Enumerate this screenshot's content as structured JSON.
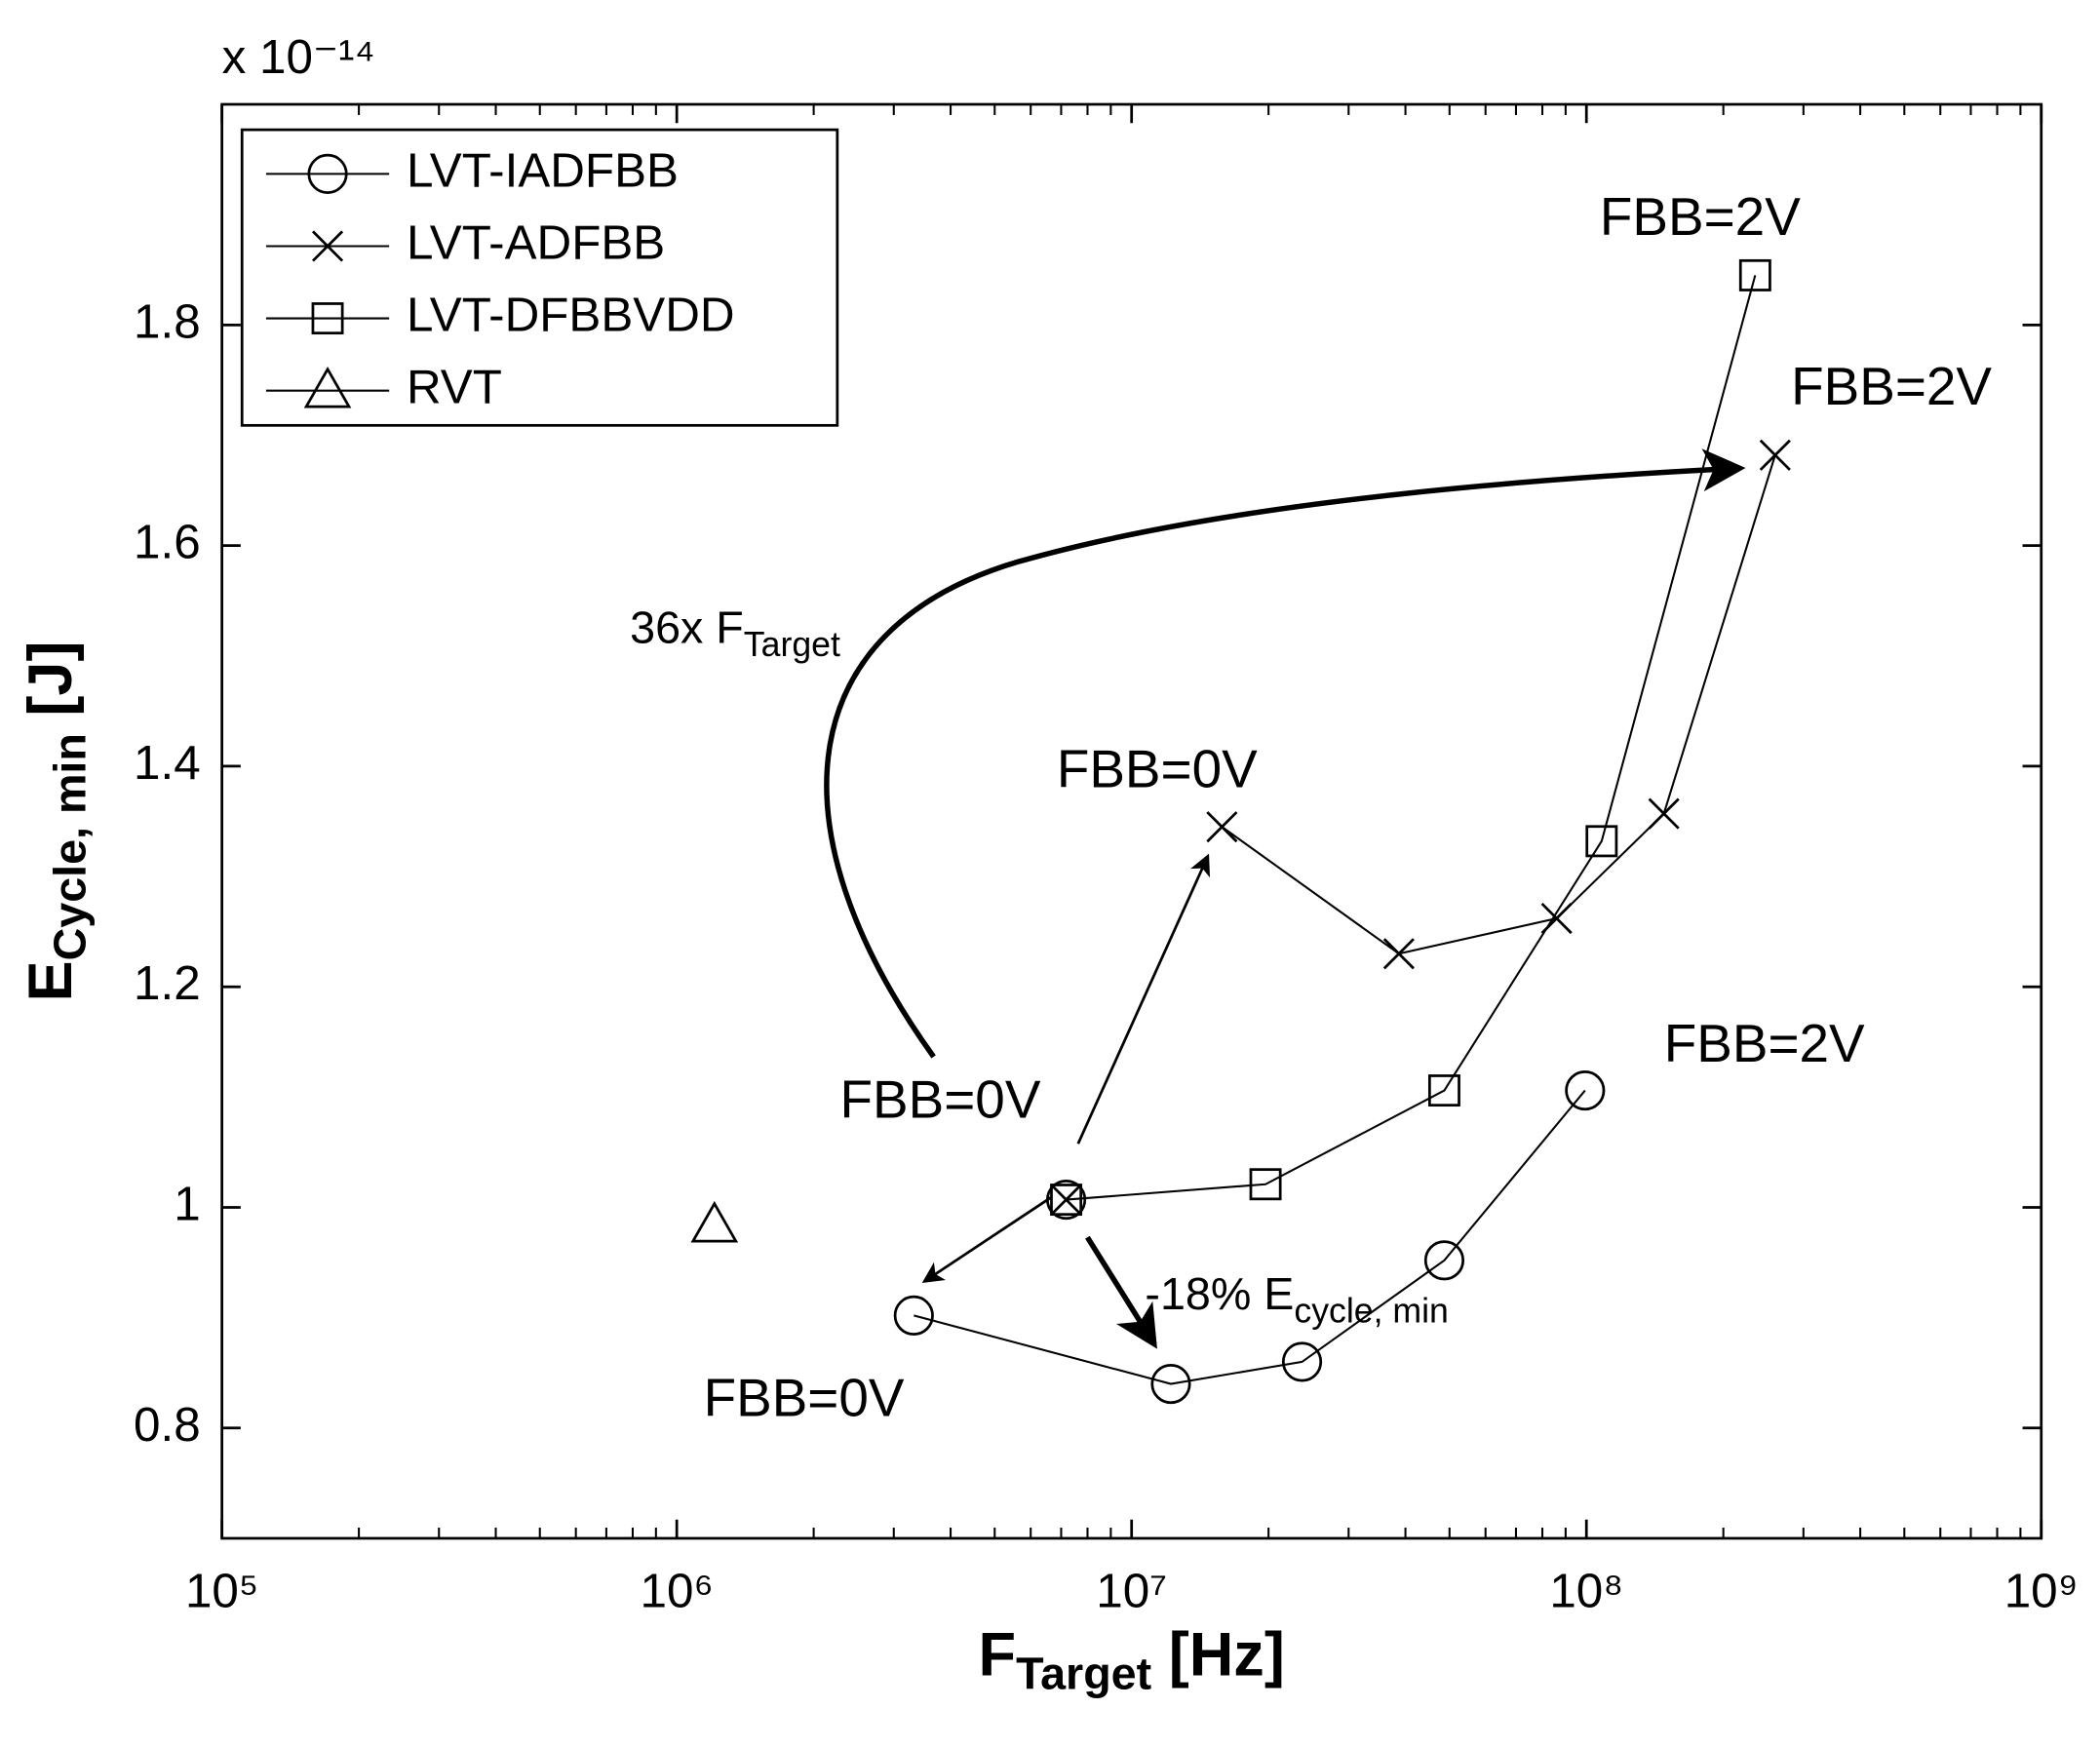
{
  "chart_data": {
    "type": "line",
    "x_label": {
      "main": "F",
      "sub": "Target",
      "unit": "[Hz]"
    },
    "y_label": {
      "main": "E",
      "sub": "Cycle, min",
      "unit": "[J]"
    },
    "y_multiplier": "x 10⁻¹⁴",
    "log_x": true,
    "xlim": [
      100000,
      1000000000
    ],
    "xticks": [
      {
        "value": 100000,
        "label": "10⁵"
      },
      {
        "value": 1000000,
        "label": "10⁶"
      },
      {
        "value": 10000000,
        "label": "10⁷"
      },
      {
        "value": 100000000,
        "label": "10⁸"
      },
      {
        "value": 1000000000,
        "label": "10⁹"
      }
    ],
    "ylim": [
      0.7,
      2.0
    ],
    "yticks": [
      0.8,
      1,
      1.2,
      1.4,
      1.6,
      1.8
    ],
    "legend": "upper left",
    "series": [
      {
        "name": "LVT-IADFBB",
        "marker": "circle",
        "color": "#000000",
        "x": [
          7180000,
          null,
          3320000,
          12200000,
          23700000,
          48700000,
          99300000
        ],
        "values": [
          1.007,
          null,
          0.902,
          0.84,
          0.86,
          0.952,
          1.106
        ]
      },
      {
        "name": "LVT-ADFBB",
        "marker": "x",
        "color": "#000000",
        "x": [
          7180000,
          null,
          15800000,
          38700000,
          86000000,
          148000000,
          260000000
        ],
        "values": [
          1.007,
          null,
          1.345,
          1.23,
          1.262,
          1.357,
          1.682
        ]
      },
      {
        "name": "LVT-DFBBVDD",
        "marker": "square",
        "color": "#000000",
        "x": [
          7180000,
          19700000,
          48700000,
          108000000,
          235000000
        ],
        "values": [
          1.007,
          1.021,
          1.106,
          1.332,
          1.845
        ]
      },
      {
        "name": "RVT",
        "marker": "triangle",
        "color": "#000000",
        "x": [
          1210000
        ],
        "values": [
          0.984
        ]
      }
    ],
    "annotations": [
      {
        "text": "FBB=2V"
      },
      {
        "text": "FBB=2V"
      },
      {
        "text": "FBB=2V"
      },
      {
        "text": "FBB=0V"
      },
      {
        "text": "FBB=0V"
      },
      {
        "text": "FBB=0V"
      },
      {
        "text": "36x F",
        "sub": "Target"
      },
      {
        "text": "-18% E",
        "sub": "cycle, min"
      }
    ]
  }
}
